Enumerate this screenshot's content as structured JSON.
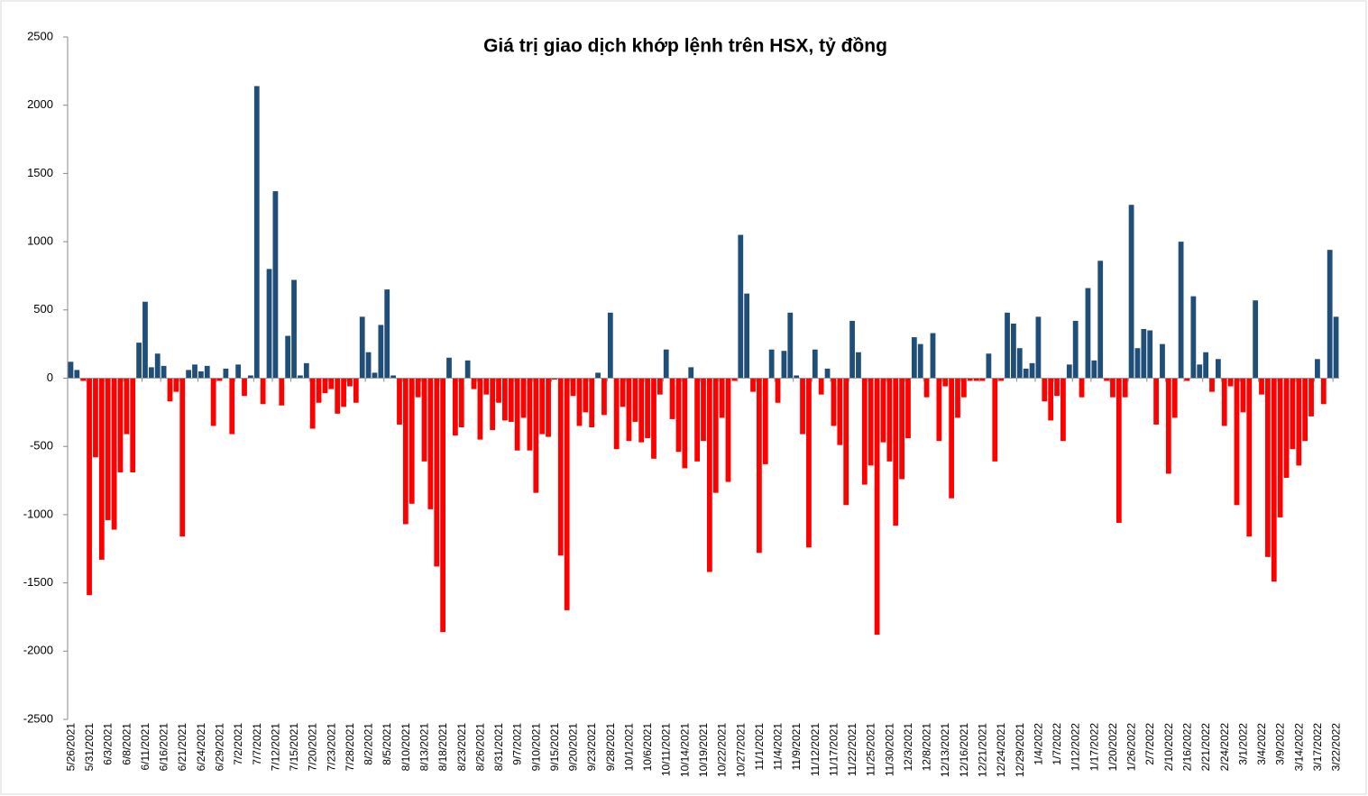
{
  "chart_data": {
    "type": "bar",
    "title": "Giá trị giao dịch khớp lệnh trên HSX, tỷ đồng",
    "categories": [
      "5/26/2021",
      null,
      null,
      "5/31/2021",
      null,
      null,
      "6/3/2021",
      null,
      null,
      "6/8/2021",
      null,
      null,
      "6/11/2021",
      null,
      null,
      "6/16/2021",
      null,
      null,
      "6/21/2021",
      null,
      null,
      "6/24/2021",
      null,
      null,
      "6/29/2021",
      null,
      null,
      "7/2/2021",
      null,
      null,
      "7/7/2021",
      null,
      null,
      "7/12/2021",
      null,
      null,
      "7/15/2021",
      null,
      null,
      "7/20/2021",
      null,
      null,
      "7/23/2021",
      null,
      null,
      "7/28/2021",
      null,
      null,
      "8/2/2021",
      null,
      null,
      "8/5/2021",
      null,
      null,
      "8/10/2021",
      null,
      null,
      "8/13/2021",
      null,
      null,
      "8/18/2021",
      null,
      null,
      "8/23/2021",
      null,
      null,
      "8/26/2021",
      null,
      null,
      "8/31/2021",
      null,
      null,
      "9/7/2021",
      null,
      null,
      "9/10/2021",
      null,
      null,
      "9/15/2021",
      null,
      null,
      "9/20/2021",
      null,
      null,
      "9/23/2021",
      null,
      null,
      "9/28/2021",
      null,
      null,
      "10/1/2021",
      null,
      null,
      "10/6/2021",
      null,
      null,
      "10/11/2021",
      null,
      null,
      "10/14/2021",
      null,
      null,
      "10/19/2021",
      null,
      null,
      "10/22/2021",
      null,
      null,
      "10/27/2021",
      null,
      null,
      "11/1/2021",
      null,
      null,
      "11/4/2021",
      null,
      null,
      "11/9/2021",
      null,
      null,
      "11/12/2021",
      null,
      null,
      "11/17/2021",
      null,
      null,
      "11/22/2021",
      null,
      null,
      "11/25/2021",
      null,
      null,
      "11/30/2021",
      null,
      null,
      "12/3/2021",
      null,
      null,
      "12/8/2021",
      null,
      null,
      "12/13/2021",
      null,
      null,
      "12/16/2021",
      null,
      null,
      "12/21/2021",
      null,
      null,
      "12/24/2021",
      null,
      null,
      "12/29/2021",
      null,
      null,
      "1/4/2022",
      null,
      null,
      "1/7/2022",
      null,
      null,
      "1/12/2022",
      null,
      null,
      "1/17/2022",
      null,
      null,
      "1/20/2022",
      null,
      null,
      "1/26/2022",
      null,
      null,
      "2/7/2022",
      null,
      null,
      "2/10/2022",
      null,
      null,
      "2/16/2022",
      null,
      null,
      "2/21/2022",
      null,
      null,
      "2/24/2022",
      null,
      null,
      "3/1/2022",
      null,
      null,
      "3/4/2022",
      null,
      null,
      "3/9/2022",
      null,
      null,
      "3/14/2022",
      null,
      null,
      "3/17/2022",
      null,
      null,
      "3/22/2022"
    ],
    "values": [
      120,
      60,
      -20,
      -1590,
      -580,
      -1330,
      -1040,
      -1110,
      -690,
      -410,
      -690,
      260,
      560,
      80,
      180,
      90,
      -170,
      -100,
      -1160,
      60,
      100,
      50,
      90,
      -350,
      -20,
      70,
      -410,
      100,
      -130,
      20,
      2140,
      -190,
      800,
      1370,
      -200,
      310,
      720,
      20,
      110,
      -370,
      -180,
      -110,
      -80,
      -260,
      -210,
      -60,
      -180,
      450,
      190,
      40,
      390,
      650,
      20,
      -340,
      -1070,
      -920,
      -140,
      -610,
      -960,
      -1380,
      -1860,
      150,
      -420,
      -360,
      130,
      -80,
      -450,
      -120,
      -380,
      -180,
      -310,
      -320,
      -530,
      -290,
      -530,
      -840,
      -410,
      -430,
      -10,
      -1300,
      -1700,
      -130,
      -350,
      -250,
      -360,
      40,
      -270,
      480,
      -520,
      -210,
      -460,
      -320,
      -470,
      -440,
      -590,
      -120,
      210,
      -300,
      -540,
      -660,
      80,
      -610,
      -460,
      -1420,
      -840,
      -290,
      -760,
      -20,
      1050,
      620,
      -100,
      -1280,
      -630,
      210,
      -180,
      200,
      480,
      20,
      -410,
      -1240,
      210,
      -120,
      70,
      -350,
      -490,
      -930,
      420,
      190,
      -780,
      -640,
      -1880,
      -470,
      -610,
      -1080,
      -740,
      -440,
      300,
      250,
      -140,
      330,
      -460,
      -60,
      -880,
      -290,
      -140,
      -20,
      -20,
      -20,
      180,
      -610,
      -20,
      480,
      400,
      220,
      70,
      110,
      450,
      -170,
      -310,
      -130,
      -460,
      100,
      420,
      -140,
      660,
      130,
      860,
      -20,
      -140,
      -1060,
      -140,
      1270,
      220,
      360,
      350,
      -340,
      250,
      -700,
      -290,
      1000,
      -20,
      600,
      100,
      190,
      -100,
      140,
      -350,
      -60,
      -930,
      -250,
      -1160,
      570,
      -120,
      -1310,
      -1490,
      -1020,
      -730,
      -520,
      -640,
      -460,
      -280,
      140,
      -190,
      940,
      450
    ],
    "positive_color": "#1f4e79",
    "negative_color": "#ff0000",
    "ylim": [
      -2500,
      2500
    ],
    "yticks": [
      -2500,
      -2000,
      -1500,
      -1000,
      -500,
      0,
      500,
      1000,
      1500,
      2000,
      2500
    ]
  }
}
